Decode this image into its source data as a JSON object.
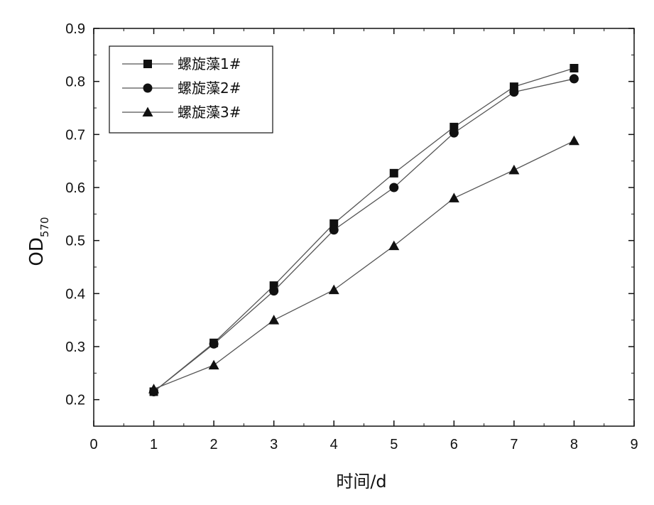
{
  "chart_data": {
    "type": "line",
    "xlabel": "时间/d",
    "ylabel_main": "OD",
    "ylabel_sub": "570",
    "xlim": [
      0,
      9
    ],
    "ylim": [
      0.15,
      0.9
    ],
    "x_ticks": [
      0,
      1,
      2,
      3,
      4,
      5,
      6,
      7,
      8,
      9
    ],
    "y_ticks": [
      0.2,
      0.3,
      0.4,
      0.5,
      0.6,
      0.7,
      0.8,
      0.9
    ],
    "x": [
      1,
      2,
      3,
      4,
      5,
      6,
      7,
      8
    ],
    "series": [
      {
        "name": "螺旋藻1#",
        "marker": "square",
        "values": [
          0.215,
          0.307,
          0.415,
          0.532,
          0.627,
          0.714,
          0.79,
          0.825
        ]
      },
      {
        "name": "螺旋藻2#",
        "marker": "circle",
        "values": [
          0.215,
          0.305,
          0.405,
          0.52,
          0.6,
          0.703,
          0.78,
          0.805
        ]
      },
      {
        "name": "螺旋藻3#",
        "marker": "triangle",
        "values": [
          0.22,
          0.265,
          0.35,
          0.407,
          0.49,
          0.58,
          0.633,
          0.688
        ]
      }
    ],
    "legend_position": "top-left",
    "grid": false,
    "colors": {
      "line": "#555555",
      "marker": "#111111",
      "axis": "#111111"
    }
  }
}
